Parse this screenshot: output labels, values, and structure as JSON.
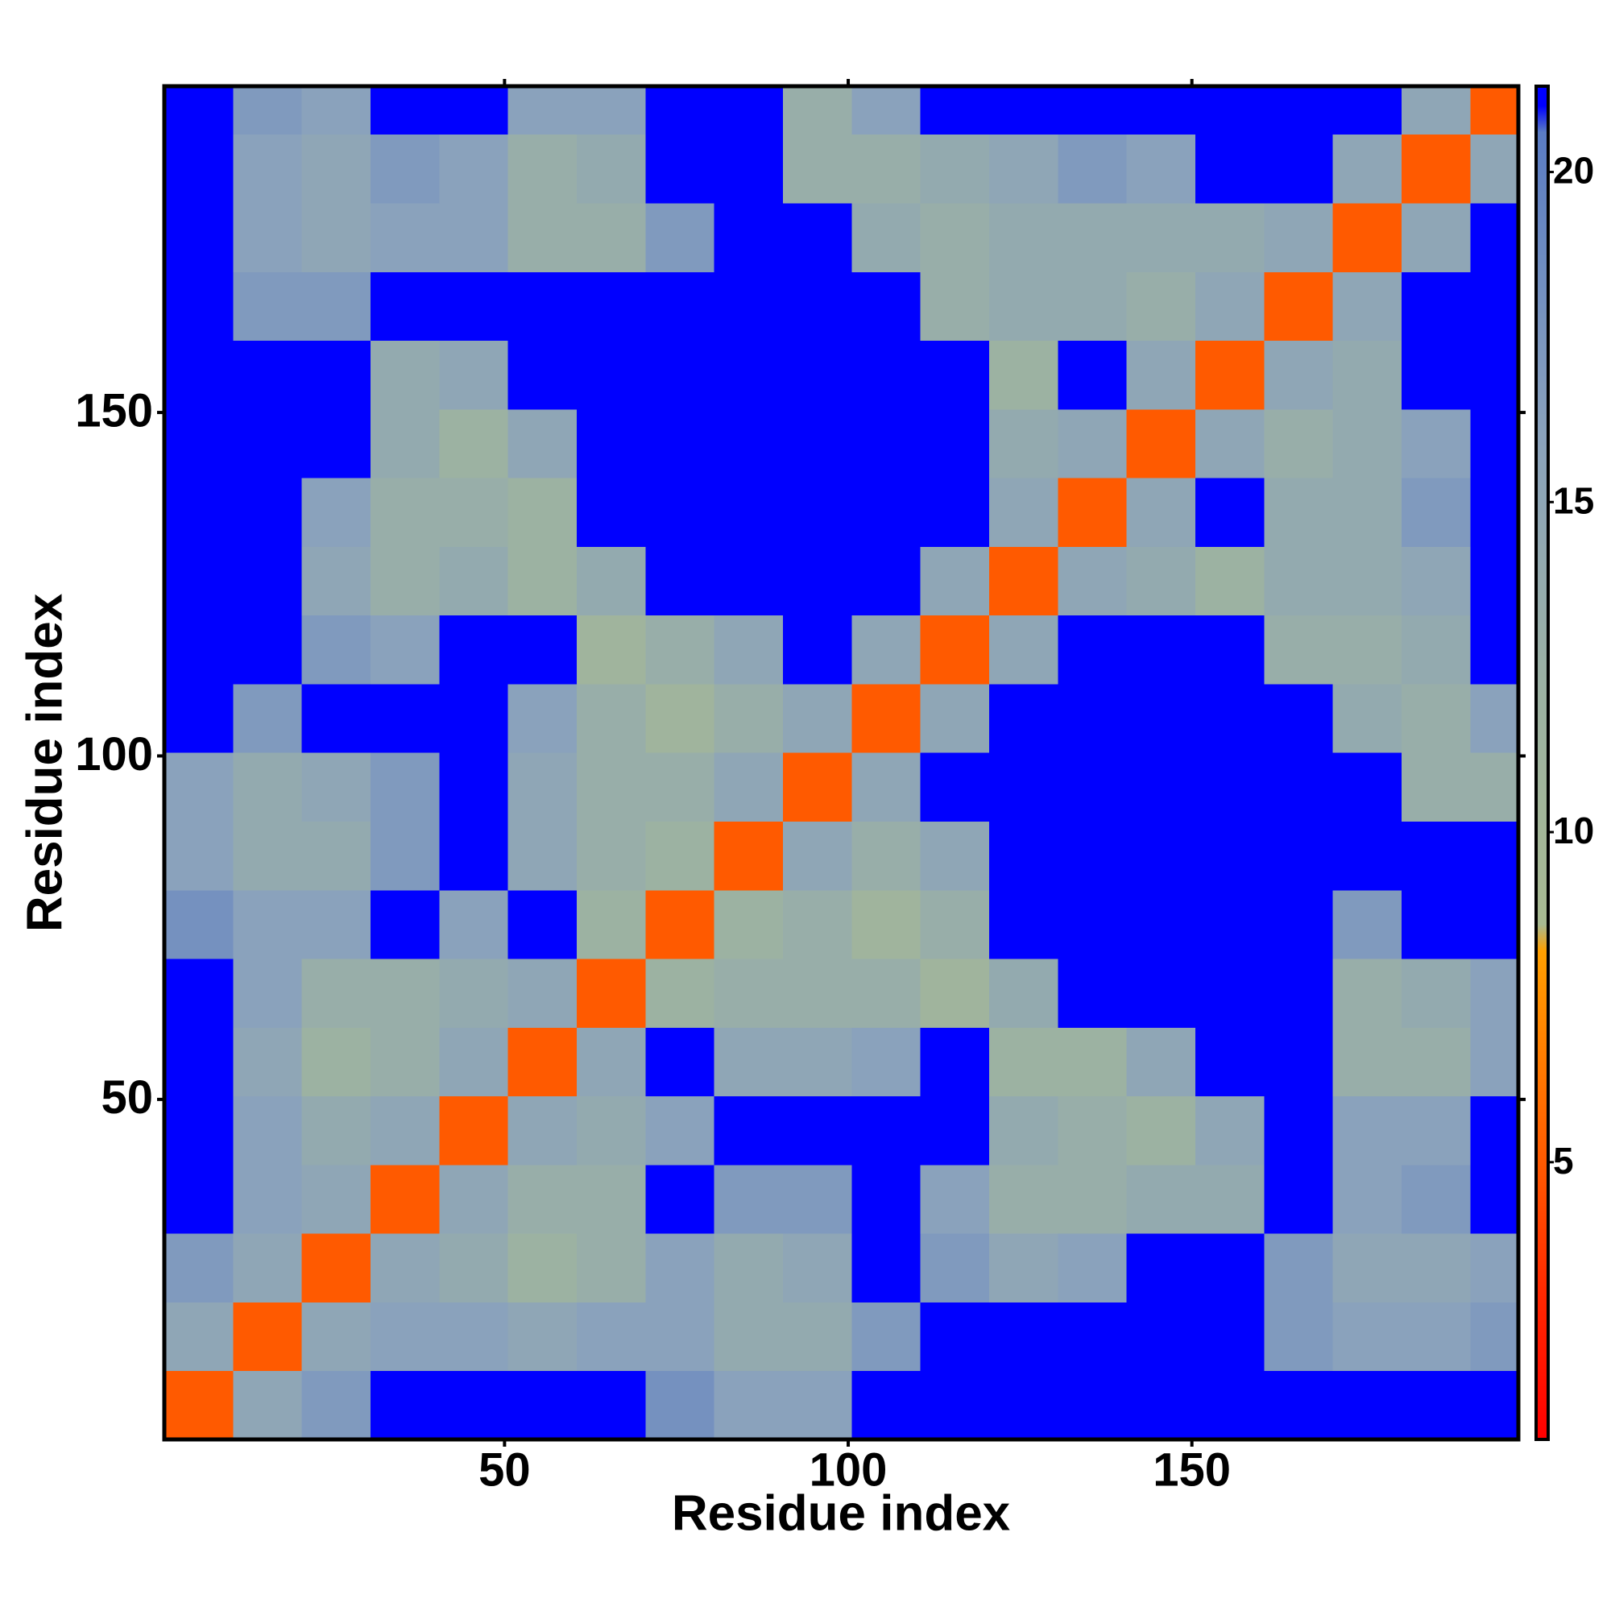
{
  "chart_data": {
    "type": "heatmap",
    "xlabel": "Residue index",
    "ylabel": "Residue index",
    "xbins": [
      0.5,
      10.5,
      20.5,
      30.5,
      40.5,
      50.5,
      60.5,
      70.5,
      80.5,
      90.5,
      100.5,
      110.5,
      120.5,
      130.5,
      140.5,
      150.5,
      160.5,
      170.5,
      180.5,
      190.5,
      197.5
    ],
    "ybins": [
      0.5,
      10.5,
      20.5,
      30.5,
      40.5,
      50.5,
      60.5,
      70.5,
      80.5,
      90.5,
      100.5,
      110.5,
      120.5,
      130.5,
      140.5,
      150.5,
      160.5,
      170.5,
      180.5,
      190.5,
      197.5
    ],
    "values": [
      [
        5,
        15,
        17,
        21,
        21,
        21,
        21,
        18,
        16,
        16,
        21,
        21,
        21,
        21,
        21,
        21,
        21,
        21,
        21,
        21
      ],
      [
        15,
        5,
        15,
        16,
        16,
        15,
        16,
        16,
        14,
        14,
        17,
        21,
        21,
        21,
        21,
        21,
        17,
        16,
        16,
        17
      ],
      [
        17,
        15,
        5,
        15,
        14,
        12,
        13,
        16,
        14,
        15,
        21,
        17,
        15,
        16,
        21,
        21,
        17,
        15,
        15,
        16
      ],
      [
        21,
        16,
        15,
        5,
        15,
        13,
        13,
        21,
        17,
        17,
        21,
        16,
        13,
        13,
        14,
        14,
        21,
        16,
        17,
        21
      ],
      [
        21,
        16,
        14,
        15,
        5,
        15,
        14,
        16,
        21,
        21,
        21,
        21,
        14,
        13,
        12,
        15,
        21,
        16,
        16,
        21
      ],
      [
        21,
        15,
        12,
        13,
        15,
        5,
        15,
        21,
        15,
        15,
        16,
        21,
        12,
        12,
        15,
        21,
        21,
        13,
        13,
        16
      ],
      [
        21,
        16,
        13,
        13,
        14,
        15,
        5,
        12,
        13,
        13,
        13,
        11,
        14,
        21,
        21,
        21,
        21,
        13,
        14,
        16
      ],
      [
        18,
        16,
        16,
        21,
        16,
        21,
        12,
        5,
        12,
        13,
        11,
        13,
        21,
        21,
        21,
        21,
        21,
        17,
        21,
        21
      ],
      [
        16,
        14,
        14,
        17,
        21,
        15,
        13,
        12,
        5,
        15,
        13,
        15,
        21,
        21,
        21,
        21,
        21,
        21,
        21,
        21
      ],
      [
        16,
        14,
        15,
        17,
        21,
        15,
        13,
        13,
        15,
        5,
        15,
        21,
        21,
        21,
        21,
        21,
        21,
        21,
        13,
        13
      ],
      [
        21,
        17,
        21,
        21,
        21,
        16,
        13,
        11,
        13,
        15,
        5,
        15,
        21,
        21,
        21,
        21,
        21,
        14,
        13,
        16
      ],
      [
        21,
        21,
        17,
        16,
        21,
        21,
        11,
        13,
        15,
        21,
        15,
        5,
        15,
        21,
        21,
        21,
        13,
        13,
        14,
        21
      ],
      [
        21,
        21,
        15,
        13,
        14,
        12,
        14,
        21,
        21,
        21,
        21,
        15,
        5,
        15,
        14,
        12,
        14,
        14,
        15,
        21
      ],
      [
        21,
        21,
        16,
        13,
        13,
        12,
        21,
        21,
        21,
        21,
        21,
        21,
        15,
        5,
        15,
        21,
        14,
        14,
        17,
        21
      ],
      [
        21,
        21,
        21,
        14,
        12,
        15,
        21,
        21,
        21,
        21,
        21,
        21,
        14,
        15,
        5,
        15,
        13,
        14,
        16,
        21
      ],
      [
        21,
        21,
        21,
        14,
        15,
        21,
        21,
        21,
        21,
        21,
        21,
        21,
        12,
        21,
        15,
        5,
        15,
        14,
        21,
        21
      ],
      [
        21,
        17,
        17,
        21,
        21,
        21,
        21,
        21,
        21,
        21,
        21,
        13,
        14,
        14,
        13,
        15,
        5,
        15,
        21,
        21
      ],
      [
        21,
        16,
        15,
        16,
        16,
        13,
        13,
        17,
        21,
        21,
        14,
        13,
        14,
        14,
        14,
        14,
        15,
        5,
        15,
        21
      ],
      [
        21,
        16,
        15,
        17,
        16,
        13,
        14,
        21,
        21,
        13,
        13,
        14,
        15,
        17,
        16,
        21,
        21,
        15,
        5,
        15
      ],
      [
        21,
        17,
        16,
        21,
        21,
        16,
        16,
        21,
        21,
        13,
        16,
        21,
        21,
        21,
        21,
        21,
        21,
        21,
        15,
        5
      ]
    ],
    "xlim": [
      0.5,
      197.5
    ],
    "ylim": [
      0.5,
      197.5
    ],
    "xticks": [
      50,
      100,
      150
    ],
    "yticks": [
      50,
      100,
      150
    ],
    "colorbar": {
      "clim": [
        0.8,
        21.3
      ],
      "ticks": [
        5,
        10,
        15,
        20
      ],
      "stops": [
        {
          "value": 0.8,
          "color": "#ff0000"
        },
        {
          "value": 3,
          "color": "#ff2800"
        },
        {
          "value": 5,
          "color": "#ff5a00"
        },
        {
          "value": 8.2,
          "color": "#ffa000"
        },
        {
          "value": 8.6,
          "color": "#a8ba92"
        },
        {
          "value": 12,
          "color": "#9cb2a2"
        },
        {
          "value": 16,
          "color": "#8aa2bc"
        },
        {
          "value": 20.6,
          "color": "#5a7cc4"
        },
        {
          "value": 21,
          "color": "#0000ff"
        },
        {
          "value": 21.3,
          "color": "#0000ff"
        }
      ]
    }
  }
}
